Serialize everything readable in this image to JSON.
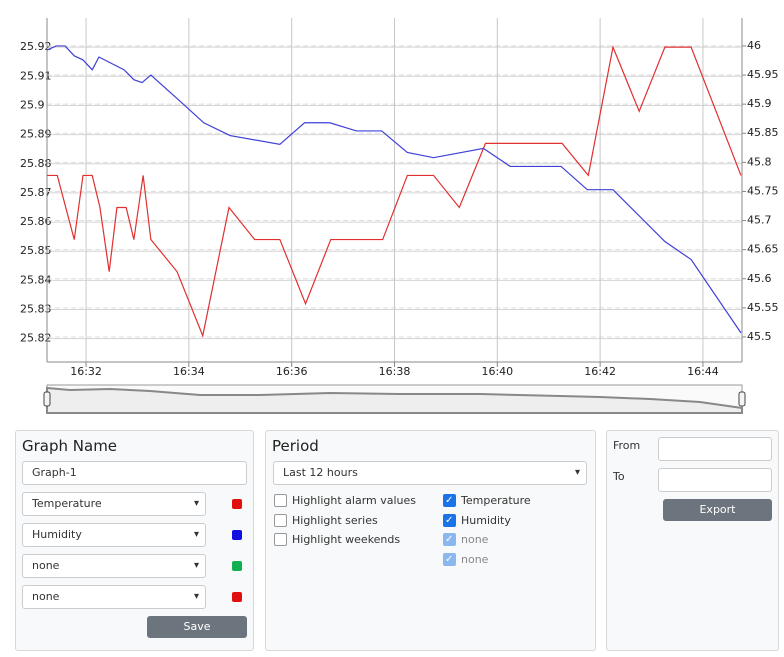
{
  "chart_data": {
    "type": "line",
    "xlim": [
      31.24,
      44.76
    ],
    "xticks": [
      {
        "value": 32,
        "label": "16:32"
      },
      {
        "value": 34,
        "label": "16:34"
      },
      {
        "value": 36,
        "label": "16:36"
      },
      {
        "value": 38,
        "label": "16:38"
      },
      {
        "value": 40,
        "label": "16:40"
      },
      {
        "value": 42,
        "label": "16:42"
      },
      {
        "value": 44,
        "label": "16:44"
      }
    ],
    "ylim": [
      25.812,
      25.93
    ],
    "yticks": [
      25.82,
      25.83,
      25.84,
      25.85,
      25.86,
      25.87,
      25.88,
      25.89,
      25.9,
      25.91,
      25.92
    ],
    "y2lim": [
      45.457,
      46.048
    ],
    "y2ticks": [
      45.5,
      45.55,
      45.6,
      45.65,
      45.7,
      45.75,
      45.8,
      45.85,
      45.9,
      45.95,
      46
    ],
    "grid": true,
    "series": [
      {
        "color": "#e03030",
        "x": [
          31.24,
          31.44,
          31.77,
          31.94,
          32.12,
          32.27,
          32.45,
          32.6,
          32.78,
          32.93,
          33.11,
          33.26,
          33.77,
          34.27,
          34.78,
          35.28,
          35.77,
          36.27,
          36.76,
          37.77,
          38.25,
          38.76,
          39.26,
          39.77,
          41.26,
          41.77,
          42.25,
          42.76,
          43.26,
          43.77,
          44.74
        ],
        "values": [
          25.876,
          25.876,
          25.854,
          25.876,
          25.876,
          25.865,
          25.843,
          25.865,
          25.865,
          25.854,
          25.876,
          25.854,
          25.843,
          25.821,
          25.865,
          25.854,
          25.854,
          25.832,
          25.854,
          25.854,
          25.876,
          25.876,
          25.865,
          25.887,
          25.887,
          25.876,
          25.92,
          25.898,
          25.92,
          25.92,
          25.876
        ]
      },
      {
        "color": "#4040d8",
        "axis": "y2",
        "x": [
          31.24,
          31.42,
          31.59,
          31.77,
          31.94,
          32.12,
          32.25,
          32.74,
          32.93,
          33.09,
          33.26,
          33.79,
          34.29,
          34.8,
          35.77,
          36.25,
          36.74,
          37.26,
          37.75,
          38.25,
          38.76,
          39.73,
          40.25,
          41.24,
          41.75,
          42.25,
          43.26,
          43.77,
          44.74
        ],
        "values": [
          45.993,
          46.0,
          46.0,
          45.983,
          45.976,
          45.959,
          45.981,
          45.959,
          45.942,
          45.937,
          45.95,
          45.908,
          45.868,
          45.846,
          45.831,
          45.868,
          45.868,
          45.854,
          45.854,
          45.817,
          45.808,
          45.824,
          45.793,
          45.793,
          45.753,
          45.753,
          45.664,
          45.633,
          45.507
        ]
      }
    ]
  },
  "graph_panel": {
    "title": "Graph Name",
    "name_input": "Graph-1",
    "series": [
      {
        "label": "Temperature",
        "color": "#e01010"
      },
      {
        "label": "Humidity",
        "color": "#1010e0"
      },
      {
        "label": "none",
        "color": "#10b050"
      },
      {
        "label": "none",
        "color": "#e01010"
      }
    ],
    "save": "Save"
  },
  "period_panel": {
    "title": "Period",
    "select": "Last 12 hours",
    "options": [
      {
        "label": "Highlight alarm values",
        "checked": false
      },
      {
        "label": "Highlight series",
        "checked": false
      },
      {
        "label": "Highlight weekends",
        "checked": false
      }
    ],
    "series_toggles": [
      {
        "label": "Temperature",
        "checked": true,
        "disabled": false
      },
      {
        "label": "Humidity",
        "checked": true,
        "disabled": false
      },
      {
        "label": "none",
        "checked": true,
        "disabled": true
      },
      {
        "label": "none",
        "checked": true,
        "disabled": true
      }
    ]
  },
  "export_panel": {
    "from": "From",
    "to": "To",
    "button": "Export"
  }
}
